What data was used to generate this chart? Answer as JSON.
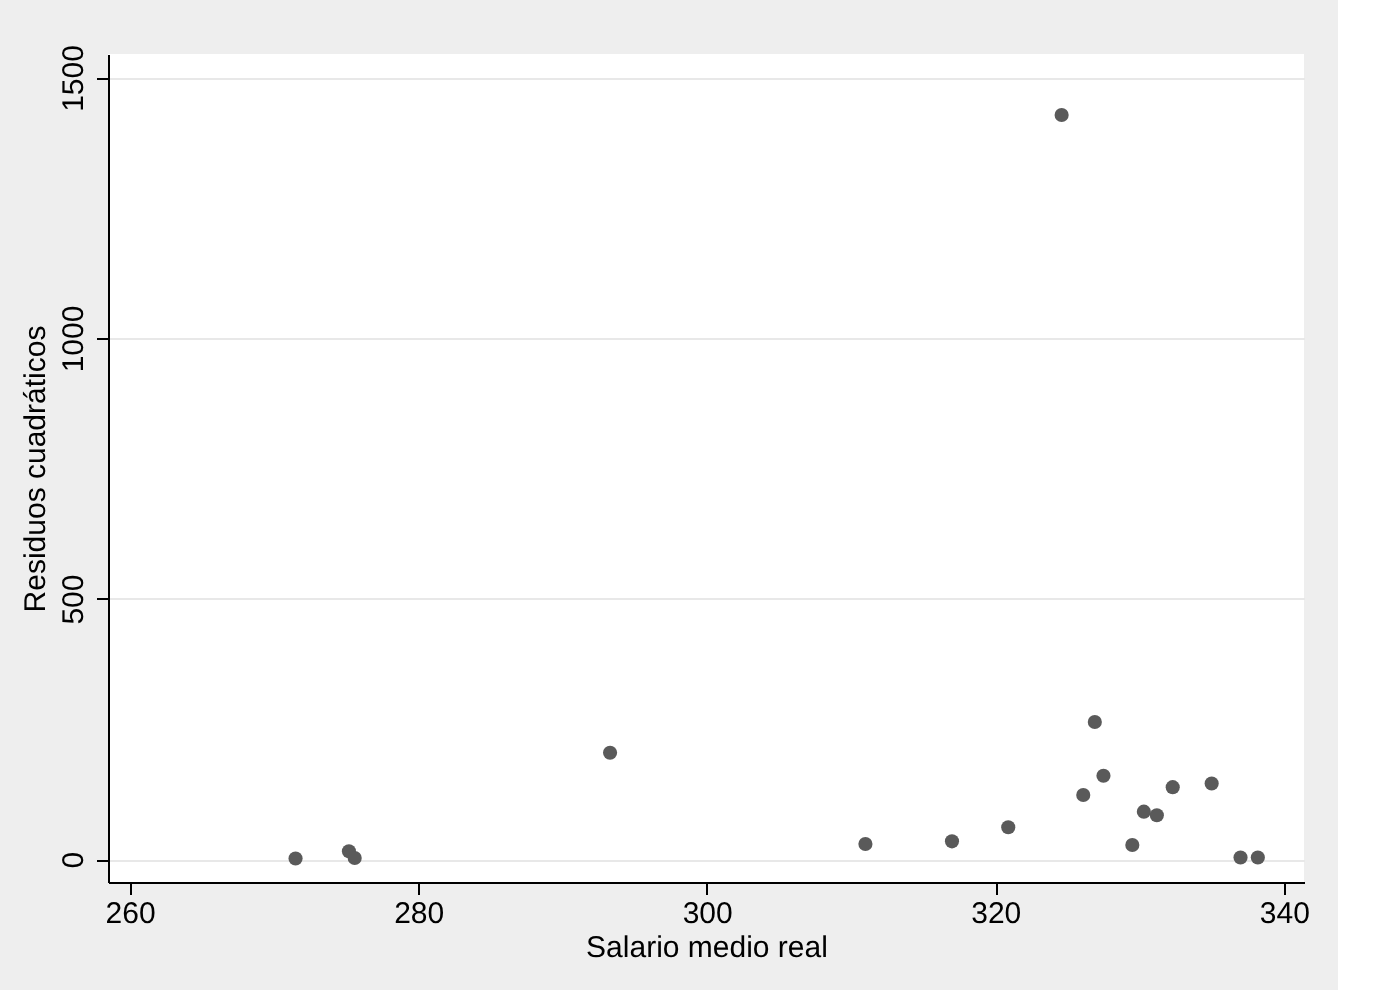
{
  "chart_data": {
    "type": "scatter",
    "xlabel": "Salario medio real",
    "ylabel": "Residuos cuadráticos",
    "x": [
      271.5,
      275.2,
      275.6,
      293.3,
      311.0,
      317.0,
      320.9,
      324.6,
      326.1,
      326.9,
      327.5,
      329.5,
      330.3,
      331.2,
      332.3,
      335.0,
      337.0,
      338.2
    ],
    "series": [
      {
        "color": "#5a5a5a",
        "values": [
          1,
          15,
          2,
          204,
          29,
          34,
          61,
          1428,
          123,
          263,
          160,
          27,
          91,
          84,
          138,
          145,
          3,
          3
        ]
      }
    ],
    "xlim": [
      258.5,
      341.4
    ],
    "ylim": [
      -44,
      1545
    ],
    "xticks": [
      260,
      280,
      300,
      320,
      340
    ],
    "yticks": [
      0,
      500,
      1000,
      1500
    ],
    "grid": "y",
    "marker": "circle"
  }
}
